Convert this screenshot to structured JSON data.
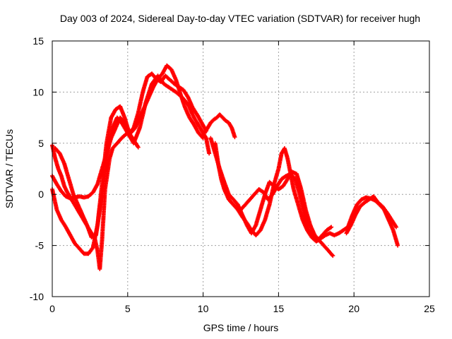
{
  "chart_data": {
    "type": "scatter",
    "title": "Day 003 of 2024, Sidereal Day-to-day VTEC variation (SDTVAR) for receiver hugh",
    "xlabel": "GPS time / hours",
    "ylabel": "SDTVAR / TECUs",
    "xlim": [
      0,
      25
    ],
    "ylim": [
      -10,
      15
    ],
    "xticks": [
      0,
      5,
      10,
      15,
      20,
      25
    ],
    "yticks": [
      -10,
      -5,
      0,
      5,
      10,
      15
    ],
    "marker": "plus",
    "grid": true,
    "series": [
      {
        "name": "track-a",
        "color": "#ff0000",
        "x": [
          0.0,
          0.3,
          0.6,
          0.9,
          1.2,
          1.5,
          1.8,
          2.1,
          2.4,
          2.7,
          3.0,
          3.3,
          3.6,
          3.9,
          4.2,
          4.5,
          4.8,
          5.1,
          5.4,
          5.7
        ],
        "y": [
          0.5,
          -1.5,
          -2.5,
          -3.2,
          -4.0,
          -4.8,
          -5.3,
          -5.8,
          -5.8,
          -5.2,
          -3.0,
          1.0,
          5.0,
          7.5,
          8.3,
          8.6,
          7.5,
          6.0,
          5.3,
          4.6
        ]
      },
      {
        "name": "track-b",
        "color": "#ff0000",
        "x": [
          0.0,
          0.2,
          0.4,
          0.6,
          0.8,
          1.0,
          1.2,
          1.4,
          1.6,
          1.8,
          2.0,
          2.2,
          2.4,
          2.6,
          2.8,
          3.0,
          3.15,
          3.3,
          3.5,
          3.8,
          4.0,
          4.3,
          4.6,
          4.9,
          5.2,
          5.5,
          5.8,
          6.1,
          6.4,
          6.7,
          7.0,
          7.3,
          7.6,
          7.9,
          8.2,
          8.5,
          8.8,
          9.1,
          9.4,
          9.7,
          10.0
        ],
        "y": [
          4.8,
          3.5,
          2.5,
          1.8,
          0.8,
          0.2,
          -0.3,
          -0.8,
          -1.3,
          -1.8,
          -2.3,
          -2.8,
          -3.3,
          -3.8,
          -4.2,
          -5.5,
          -7.3,
          -4.5,
          0.5,
          3.5,
          4.5,
          5.0,
          5.5,
          5.9,
          6.0,
          6.5,
          7.5,
          8.5,
          9.5,
          10.5,
          11.3,
          11.8,
          12.6,
          12.2,
          11.2,
          9.8,
          8.5,
          7.5,
          6.8,
          6.0,
          5.5
        ]
      },
      {
        "name": "track-c",
        "color": "#ff0000",
        "x": [
          0.0,
          0.3,
          0.6,
          0.9,
          1.2,
          1.5,
          1.8,
          2.1,
          2.4,
          2.7,
          3.0,
          3.3,
          3.6,
          3.9,
          4.2,
          4.5,
          4.8,
          5.1,
          5.4,
          5.7,
          6.0,
          6.3,
          6.6,
          6.9,
          7.2,
          7.5,
          7.8,
          8.1,
          8.4,
          8.7,
          9.0,
          9.3,
          9.6,
          9.9,
          10.2
        ],
        "y": [
          1.8,
          1.0,
          0.3,
          -0.2,
          -0.4,
          -0.3,
          -0.2,
          -0.3,
          -0.2,
          0.2,
          1.0,
          2.5,
          4.0,
          5.5,
          6.5,
          7.5,
          7.0,
          6.0,
          6.5,
          8.0,
          10.0,
          11.5,
          11.8,
          11.3,
          11.0,
          11.6,
          11.2,
          10.8,
          10.5,
          10.2,
          9.5,
          8.5,
          7.8,
          7.0,
          6.2
        ]
      },
      {
        "name": "track-d",
        "color": "#ff0000",
        "x": [
          0.2,
          0.5,
          0.8,
          1.1,
          1.4,
          1.7,
          2.0,
          2.3,
          2.6,
          2.9,
          3.1,
          3.4,
          3.7,
          4.0,
          4.3,
          4.6,
          5.0,
          5.4,
          5.8,
          6.2,
          6.6,
          7.0,
          7.4,
          7.8,
          8.2,
          8.6,
          9.0,
          9.4,
          9.8,
          10.2,
          10.4
        ],
        "y": [
          4.5,
          4.0,
          3.0,
          1.5,
          0.0,
          -1.0,
          -2.0,
          -3.0,
          -4.2,
          -4.0,
          -2.0,
          1.0,
          4.5,
          6.5,
          7.5,
          7.0,
          6.0,
          5.0,
          6.5,
          9.0,
          10.8,
          11.6,
          10.8,
          10.4,
          10.0,
          9.5,
          8.8,
          7.5,
          6.5,
          5.5,
          4.0
        ]
      },
      {
        "name": "track-e",
        "color": "#ff0000",
        "x": [
          10.1,
          10.3,
          10.5,
          10.7,
          10.9,
          11.1,
          11.3,
          11.5,
          11.7,
          11.9,
          12.1
        ],
        "y": [
          6.0,
          6.5,
          7.0,
          7.3,
          7.5,
          7.8,
          7.5,
          7.2,
          7.0,
          6.5,
          5.6
        ]
      },
      {
        "name": "track-f",
        "color": "#ff0000",
        "x": [
          10.8,
          11.0,
          11.2,
          11.4,
          11.7,
          12.0,
          12.3,
          12.6,
          12.9,
          13.2,
          13.5,
          13.8,
          14.1,
          14.4,
          14.7,
          15.0,
          15.2,
          15.4,
          15.6,
          15.8,
          16.0,
          16.3,
          16.6,
          16.9,
          17.2,
          17.5,
          17.8,
          18.1,
          18.4,
          18.7,
          19.0,
          19.3,
          19.6,
          19.9,
          20.2,
          20.5,
          20.8,
          21.1,
          21.4,
          21.7,
          22.0,
          22.3,
          22.6,
          22.9
        ],
        "y": [
          5.0,
          3.0,
          1.5,
          0.5,
          -0.5,
          -1.0,
          -1.5,
          -2.2,
          -2.8,
          -3.5,
          -4.0,
          -3.5,
          -2.5,
          -1.0,
          1.0,
          2.5,
          4.0,
          4.5,
          3.5,
          2.0,
          0.5,
          -1.0,
          -2.5,
          -3.5,
          -4.2,
          -4.6,
          -4.3,
          -4.0,
          -3.8,
          -4.0,
          -3.8,
          -3.5,
          -3.2,
          -2.0,
          -1.0,
          -0.5,
          -0.3,
          -0.4,
          -0.6,
          -1.0,
          -1.5,
          -2.5,
          -3.5,
          -5.0
        ]
      },
      {
        "name": "track-g",
        "color": "#ff0000",
        "x": [
          10.5,
          10.8,
          11.1,
          11.4,
          11.7,
          12.0,
          12.3,
          12.6,
          12.9,
          13.2,
          13.5,
          13.8,
          14.1,
          14.4,
          14.7,
          15.0,
          15.3,
          15.6,
          15.9,
          16.2,
          16.5,
          16.8,
          17.1,
          17.4,
          17.7,
          18.0,
          18.3,
          18.6
        ],
        "y": [
          5.5,
          4.0,
          2.5,
          1.2,
          0.0,
          -0.5,
          -1.0,
          -2.0,
          -3.0,
          -3.8,
          -3.0,
          -1.5,
          0.0,
          1.2,
          0.8,
          0.5,
          0.8,
          1.5,
          2.2,
          2.0,
          0.5,
          -1.5,
          -3.0,
          -4.0,
          -4.5,
          -5.0,
          -5.5,
          -6.0
        ]
      },
      {
        "name": "track-h",
        "color": "#ff0000",
        "x": [
          12.5,
          12.8,
          13.1,
          13.4,
          13.7,
          14.0,
          14.3,
          14.6,
          14.9,
          15.2,
          15.5,
          15.8,
          16.1,
          16.4,
          16.7,
          17.0,
          17.3,
          17.6,
          17.9,
          18.2,
          18.5
        ],
        "y": [
          -1.5,
          -1.0,
          -0.5,
          0.0,
          0.5,
          0.2,
          -0.5,
          0.0,
          0.8,
          1.5,
          1.8,
          2.0,
          1.5,
          0.0,
          -2.0,
          -3.5,
          -4.2,
          -4.5,
          -4.0,
          -3.5,
          -3.2
        ]
      },
      {
        "name": "track-i",
        "color": "#ff0000",
        "x": [
          19.5,
          19.8,
          20.1,
          20.4,
          20.7,
          21.0,
          21.3,
          21.6,
          21.9,
          22.2,
          22.5,
          22.8
        ],
        "y": [
          -3.8,
          -3.0,
          -2.0,
          -1.2,
          -0.8,
          -0.5,
          -0.2,
          -0.8,
          -1.2,
          -1.8,
          -2.5,
          -3.2
        ]
      }
    ]
  }
}
